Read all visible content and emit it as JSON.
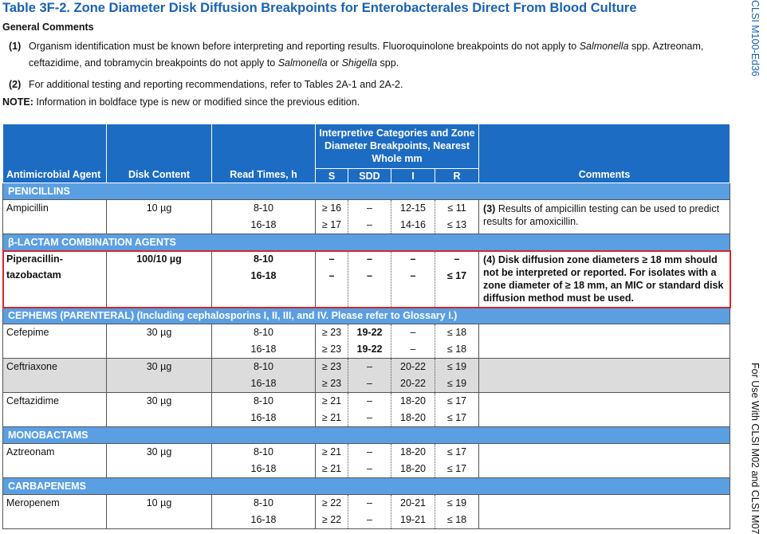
{
  "header": {
    "title": "Table 3F-2. Zone Diameter Disk Diffusion Breakpoints for Enterobacterales Direct From Blood Culture",
    "side_label": "CLSI M100-Ed36",
    "side_note": "For Use With CLSI M02 and CLSI M07"
  },
  "general_comments": {
    "heading": "General Comments",
    "items": [
      {
        "number": "(1)",
        "parts": [
          {
            "text": "Organism identification must be known before interpreting and reporting results. Fluoroquinolone breakpoints do not apply to "
          },
          {
            "text": "Salmonella",
            "italic": true
          },
          {
            "text": " spp. Aztreonam, ceftazidime, and tobramycin breakpoints do not apply to "
          },
          {
            "text": "Salmonella",
            "italic": true
          },
          {
            "text": " or "
          },
          {
            "text": "Shigella",
            "italic": true
          },
          {
            "text": " spp."
          }
        ]
      },
      {
        "number": "(2)",
        "parts": [
          {
            "text": "For additional testing and reporting recommendations, refer to Tables 2A-1 and 2A-2."
          }
        ]
      }
    ]
  },
  "note": {
    "label": "NOTE:",
    "text": "Information in boldface type is new or modified since the previous edition."
  },
  "table": {
    "columns": {
      "agent": "Antimicrobial Agent",
      "disk": "Disk Content",
      "read_times": "Read Times, h",
      "group": "Interpretive Categories and Zone Diameter Breakpoints, Nearest Whole mm",
      "S": "S",
      "SDD": "SDD",
      "I": "I",
      "R": "R",
      "comments": "Comments"
    },
    "rows": [
      {
        "category": "PENICILLINS"
      },
      {
        "agent": "Ampicillin",
        "disk": "10 µg",
        "read_times": [
          "8-10",
          "16-18"
        ],
        "S": [
          "≥ 16",
          "≥ 17"
        ],
        "SDD": [
          "–",
          "–"
        ],
        "I": [
          "12-15",
          "14-16"
        ],
        "R": [
          "≤ 11",
          "≤ 13"
        ],
        "comment": {
          "number": "(3)",
          "text": "Results of ampicillin testing can be used to predict results for amoxicillin."
        }
      },
      {
        "category": "β-LACTAM COMBINATION AGENTS"
      },
      {
        "agent": "Piperacillin-tazobactam",
        "disk": "100/10 µg",
        "read_times": [
          "8-10",
          "16-18"
        ],
        "S": [
          "–",
          "–"
        ],
        "SDD": [
          "–",
          "–"
        ],
        "I": [
          "–",
          "–"
        ],
        "R": [
          "–",
          "≤ 17"
        ],
        "bold": true,
        "highlighted": true,
        "comment": {
          "number": "(4)",
          "text": "Disk diffusion zone diameters ≥ 18 mm should not be interpreted or reported. For isolates with a zone diameter of ≥ 18 mm, an MIC or standard disk diffusion method must be used."
        }
      },
      {
        "category": "CEPHEMS (PARENTERAL) (Including cephalosporins I, II, III, and IV. Please refer to Glossary I.)"
      },
      {
        "agent": "Cefepime",
        "disk": "30 µg",
        "read_times": [
          "8-10",
          "16-18"
        ],
        "S": [
          "≥ 23",
          "≥ 23"
        ],
        "SDD": [
          "19-22",
          "19-22"
        ],
        "I": [
          "–",
          "–"
        ],
        "R": [
          "≤ 18",
          "≤ 18"
        ],
        "bold_columns": [
          "SDD"
        ]
      },
      {
        "agent": "Ceftriaxone",
        "disk": "30 µg",
        "read_times": [
          "8-10",
          "16-18"
        ],
        "S": [
          "≥ 23",
          "≥ 23"
        ],
        "SDD": [
          "–",
          "–"
        ],
        "I": [
          "20-22",
          "20-22"
        ],
        "R": [
          "≤ 19",
          "≤ 19"
        ],
        "shaded": true
      },
      {
        "agent": "Ceftazidime",
        "disk": "30 µg",
        "read_times": [
          "8-10",
          "16-18"
        ],
        "S": [
          "≥ 21",
          "≥ 21"
        ],
        "SDD": [
          "–",
          "–"
        ],
        "I": [
          "18-20",
          "18-20"
        ],
        "R": [
          "≤ 17",
          "≤ 17"
        ]
      },
      {
        "category": "MONOBACTAMS"
      },
      {
        "agent": "Aztreonam",
        "disk": "30 µg",
        "read_times": [
          "8-10",
          "16-18"
        ],
        "S": [
          "≥ 21",
          "≥ 21"
        ],
        "SDD": [
          "–",
          "–"
        ],
        "I": [
          "18-20",
          "18-20"
        ],
        "R": [
          "≤ 17",
          "≤ 17"
        ]
      },
      {
        "category": "CARBAPENEMS"
      },
      {
        "agent": "Meropenem",
        "disk": "10 µg",
        "read_times": [
          "8-10",
          "16-18"
        ],
        "S": [
          "≥ 22",
          "≥ 22"
        ],
        "SDD": [
          "–",
          "–"
        ],
        "I": [
          "20-21",
          "19-21"
        ],
        "R": [
          "≤ 19",
          "≤ 18"
        ]
      }
    ]
  }
}
